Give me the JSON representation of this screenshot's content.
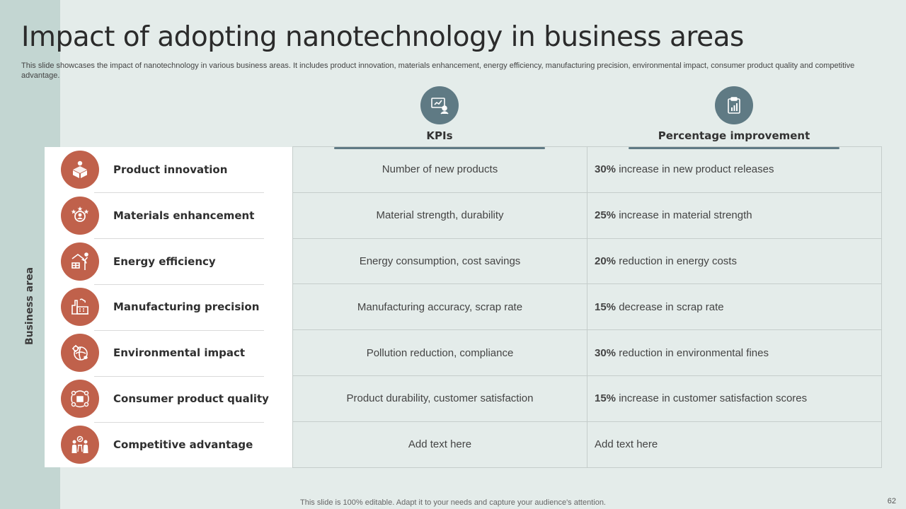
{
  "slide": {
    "title": "Impact of adopting nanotechnology in business areas",
    "subtitle": "This slide showcases the impact of nanotechnology in various business areas. It includes product innovation, materials enhancement, energy efficiency, manufacturing precision, environmental impact, consumer product quality and competitive advantage.",
    "vertical_label": "Business area",
    "footer": "This slide is 100% editable. Adapt it to your needs and capture your audience's attention.",
    "page_number": "62"
  },
  "columns": {
    "kpi": {
      "label": "KPIs",
      "icon": "chart-presentation-icon"
    },
    "pct": {
      "label": "Percentage improvement",
      "icon": "clipboard-chart-icon"
    }
  },
  "colors": {
    "accent_terracotta": "#c0614b",
    "accent_slate": "#5f7a84",
    "side_band": "#c3d6d2",
    "background": "#e4ecea"
  },
  "rows": [
    {
      "area": "Product innovation",
      "icon": "box-idea-icon",
      "kpi": "Number of new products",
      "pct_value": "30%",
      "pct_text": " increase in new product releases"
    },
    {
      "area": "Materials enhancement",
      "icon": "star-person-icon",
      "kpi": "Material strength, durability",
      "pct_value": "25%",
      "pct_text": " increase in material strength"
    },
    {
      "area": "Energy efficiency",
      "icon": "solar-wind-icon",
      "kpi": "Energy consumption, cost savings",
      "pct_value": "20%",
      "pct_text": " reduction in energy costs"
    },
    {
      "area": "Manufacturing precision",
      "icon": "factory-icon",
      "kpi": "Manufacturing accuracy, scrap rate",
      "pct_value": "15%",
      "pct_text": " decrease in scrap rate"
    },
    {
      "area": "Environmental impact",
      "icon": "gear-globe-icon",
      "kpi": "Pollution reduction, compliance",
      "pct_value": "30%",
      "pct_text": " reduction in environmental fines"
    },
    {
      "area": "Consumer product quality",
      "icon": "product-cycle-icon",
      "kpi": "Product durability, customer satisfaction",
      "pct_value": "15%",
      "pct_text": " increase in customer satisfaction scores"
    },
    {
      "area": "Competitive advantage",
      "icon": "team-discussion-icon",
      "kpi": "Add text here",
      "pct_value": "",
      "pct_text": "Add text here"
    }
  ]
}
